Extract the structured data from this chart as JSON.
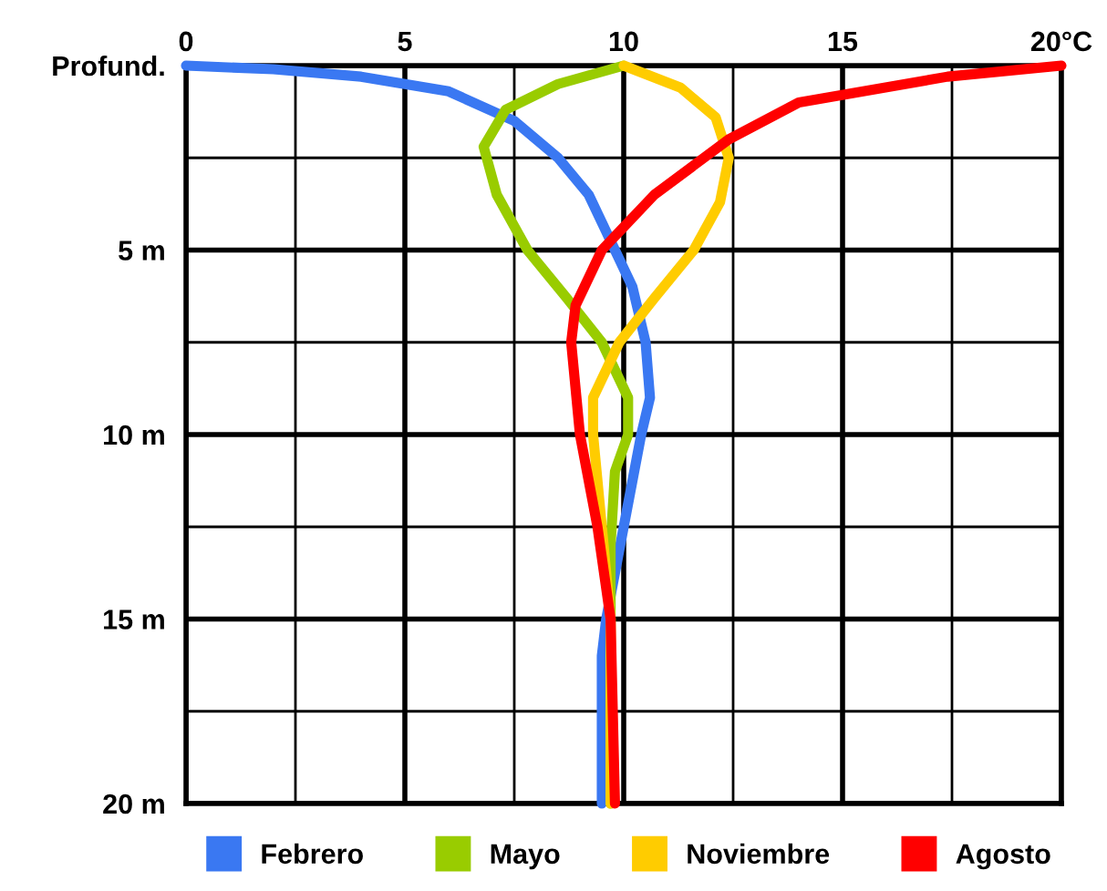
{
  "chart_data": {
    "type": "line",
    "xlim": [
      0,
      20
    ],
    "ylim": [
      20,
      0
    ],
    "xticks": [
      0,
      {
        "value": 2.5,
        "label": null
      },
      5,
      {
        "value": 7.5,
        "label": null
      },
      10,
      {
        "value": 12.5,
        "label": null
      },
      15,
      {
        "value": 17.5,
        "label": null
      },
      {
        "value": 20,
        "label": "20°C"
      }
    ],
    "yticks": [
      {
        "value": 0,
        "label": "Profund."
      },
      {
        "value": 2.5,
        "label": null
      },
      {
        "value": 5,
        "label": "5 m"
      },
      {
        "value": 7.5,
        "label": null
      },
      {
        "value": 10,
        "label": "10 m"
      },
      {
        "value": 12.5,
        "label": null
      },
      {
        "value": 15,
        "label": "15 m"
      },
      {
        "value": 17.5,
        "label": null
      },
      {
        "value": 20,
        "label": "20 m"
      }
    ],
    "grid": true,
    "legend": "bottom",
    "marker": "none",
    "line_style": "solid",
    "series": [
      {
        "name": "Febrero",
        "color": "#3a78f2",
        "x": [
          0,
          2,
          4,
          6,
          7.5,
          8.5,
          9.2,
          9.8,
          10.2,
          10.5,
          10.6,
          10.4,
          10,
          9.6,
          9.5,
          9.5
        ],
        "values": [
          0,
          0.1,
          0.3,
          0.7,
          1.5,
          2.5,
          3.5,
          5,
          6,
          7.5,
          9,
          10,
          12.5,
          15,
          16,
          20
        ]
      },
      {
        "name": "Mayo",
        "color": "#99cc00",
        "x": [
          10,
          8.5,
          7.3,
          6.8,
          7.1,
          7.8,
          8.7,
          9.5,
          10.1,
          10.1,
          9.8,
          9.7,
          9.7
        ],
        "values": [
          0,
          0.5,
          1.2,
          2.2,
          3.5,
          5,
          6.3,
          7.5,
          9,
          10,
          11,
          13,
          20
        ]
      },
      {
        "name": "Noviembre",
        "color": "#ffcc00",
        "x": [
          10,
          11.3,
          12.1,
          12.4,
          12.2,
          11.6,
          10.7,
          9.9,
          9.3,
          9.3,
          9.5,
          9.7,
          9.7
        ],
        "values": [
          0,
          0.6,
          1.4,
          2.5,
          3.7,
          5,
          6.3,
          7.5,
          9,
          10,
          12.5,
          15,
          20
        ]
      },
      {
        "name": "Agosto",
        "color": "#ff0000",
        "x": [
          20,
          17.4,
          14,
          12.4,
          10.7,
          9.5,
          8.9,
          8.8,
          9,
          9.4,
          9.7,
          9.8
        ],
        "values": [
          0,
          0.3,
          1,
          2,
          3.5,
          5,
          6.5,
          7.5,
          10,
          12.5,
          15,
          20
        ]
      }
    ]
  }
}
